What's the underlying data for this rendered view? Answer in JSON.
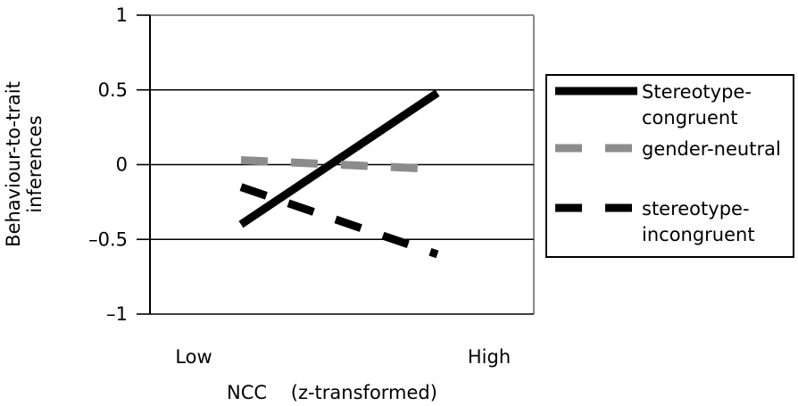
{
  "chart_data": {
    "type": "line",
    "title": "",
    "xlabel": "NCC    (z-transformed)",
    "ylabel_lines": [
      "Behaviour-to-trait",
      "inferences"
    ],
    "categories": [
      "Low",
      "High"
    ],
    "ylim": [
      -1,
      1
    ],
    "yticks": [
      1,
      0.5,
      0,
      -0.5,
      -1
    ],
    "ytick_labels": [
      "1",
      "0.5",
      "0",
      "–0.5",
      "–1"
    ],
    "grid": "horizontal",
    "legend_position": "right",
    "series": [
      {
        "name_lines": [
          "Stereotype-",
          "congruent"
        ],
        "values": [
          -0.4,
          0.48
        ],
        "color": "#000000",
        "style": "solid"
      },
      {
        "name_lines": [
          "gender-neutral"
        ],
        "values": [
          0.03,
          -0.03
        ],
        "color": "#8c8c8c",
        "style": "dashed"
      },
      {
        "name_lines": [
          "stereotype-",
          "incongruent"
        ],
        "values": [
          -0.15,
          -0.6
        ],
        "color": "#000000",
        "style": "dashed"
      }
    ]
  }
}
